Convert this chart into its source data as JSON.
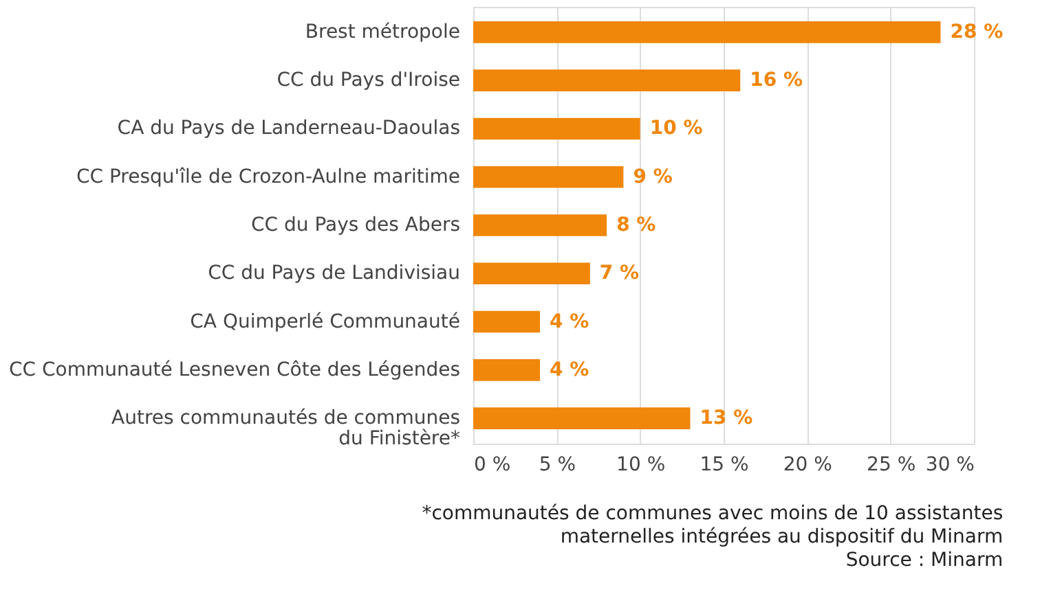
{
  "chart_data": {
    "type": "bar",
    "orientation": "horizontal",
    "categories": [
      "Brest métropole",
      "CC du Pays d'Iroise",
      "CA du Pays de Landerneau-Daoulas",
      "CC Presqu'île de Crozon-Aulne maritime",
      "CC du Pays des Abers",
      "CC du Pays de Landivisiau",
      "CA Quimperlé Communauté",
      "CC Communauté Lesneven Côte des Légendes",
      "Autres communautés de communes\ndu Finistère*"
    ],
    "values": [
      28,
      16,
      10,
      9,
      8,
      7,
      4,
      4,
      13
    ],
    "value_labels": [
      "28 %",
      "16 %",
      "10 %",
      "9 %",
      "8 %",
      "7 %",
      "4 %",
      "4 %",
      "13 %"
    ],
    "color": "#f0860a",
    "xlim": [
      0,
      30
    ],
    "xticks": [
      {
        "value": 0,
        "label": "0 %"
      },
      {
        "value": 5,
        "label": "5 %"
      },
      {
        "value": 10,
        "label": "10 %"
      },
      {
        "value": 15,
        "label": "15 %"
      },
      {
        "value": 20,
        "label": "20 %"
      },
      {
        "value": 25,
        "label": "25 %"
      },
      {
        "value": 30,
        "label": "30 %"
      }
    ],
    "grid": "x",
    "annotations": [
      "*communautés de communes avec moins de 10 assistantes",
      "maternelles intégrées au dispositif du Minarm",
      "Source : Minarm"
    ]
  }
}
